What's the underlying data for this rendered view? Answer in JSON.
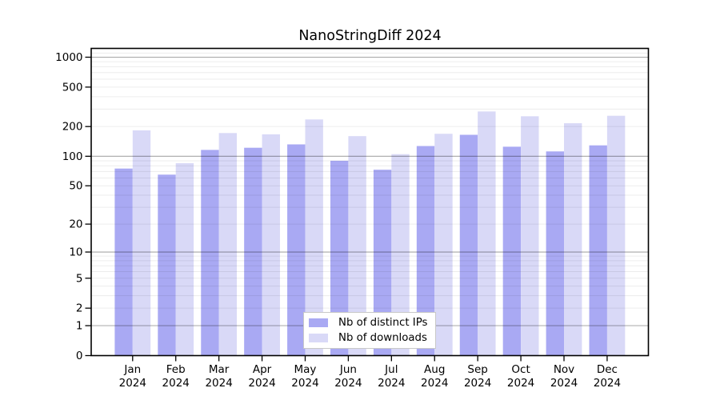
{
  "page": {
    "background": "#ffffff"
  },
  "chart_data": {
    "type": "bar",
    "title": "NanoStringDiff 2024",
    "scale": "log1p",
    "categories": [
      "Jan",
      "Feb",
      "Mar",
      "Apr",
      "May",
      "Jun",
      "Jul",
      "Aug",
      "Sep",
      "Oct",
      "Nov",
      "Dec"
    ],
    "x_tick_year": "2024",
    "y_ticks": [
      0,
      1,
      2,
      5,
      10,
      20,
      50,
      100,
      200,
      500,
      1000
    ],
    "ylim": [
      0,
      1200
    ],
    "grid": true,
    "legend_position": "bottom-center",
    "series": [
      {
        "name": "Nb of distinct IPs",
        "color": "#A9A9F3",
        "values": [
          75,
          65,
          116,
          122,
          132,
          90,
          73,
          127,
          165,
          125,
          112,
          129
        ]
      },
      {
        "name": "Nb of downloads",
        "color": "#D9D9F7",
        "values": [
          183,
          85,
          172,
          167,
          236,
          160,
          105,
          169,
          284,
          254,
          216,
          257
        ]
      }
    ],
    "colors": {
      "grid_minor": "rgba(0,0,0,0.075)",
      "grid_major": "rgba(0,0,0,0.30)",
      "axis": "#000000"
    }
  }
}
